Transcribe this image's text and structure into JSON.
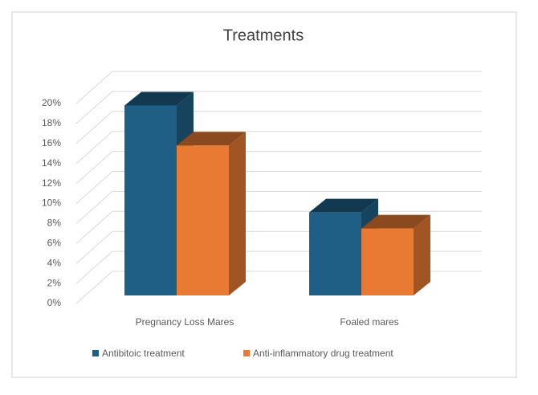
{
  "chart_data": {
    "type": "bar3d",
    "title": "Treatments",
    "categories": [
      "Pregnancy Loss Mares",
      "Foaled mares"
    ],
    "series": [
      {
        "name": "Antibitoic treatment",
        "color": "#1f5f85",
        "values": [
          19,
          8.3
        ]
      },
      {
        "name": "Anti-inflammatory drug treatment",
        "color": "#e87a33",
        "values": [
          15,
          6.7
        ]
      }
    ],
    "ylim": [
      0,
      20
    ],
    "yticks": [
      {
        "value": 0,
        "label": "0%"
      },
      {
        "value": 2,
        "label": "2%"
      },
      {
        "value": 4,
        "label": "4%"
      },
      {
        "value": 6,
        "label": "6%"
      },
      {
        "value": 8,
        "label": "8%"
      },
      {
        "value": 10,
        "label": "10%"
      },
      {
        "value": 12,
        "label": "12%"
      },
      {
        "value": 14,
        "label": "14%"
      },
      {
        "value": 16,
        "label": "16%"
      },
      {
        "value": 18,
        "label": "18%"
      },
      {
        "value": 20,
        "label": "20%"
      }
    ],
    "grid": true,
    "legend": "bottom"
  }
}
